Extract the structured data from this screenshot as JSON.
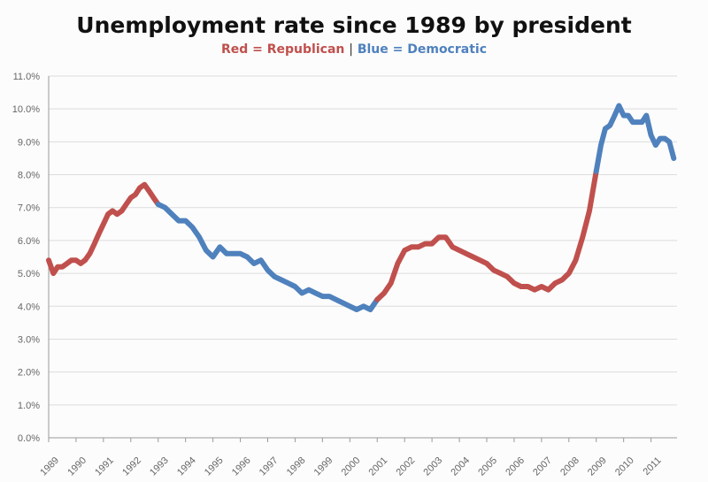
{
  "chart_data": {
    "type": "line",
    "title": "Unemployment rate since 1989 by president",
    "subtitle": {
      "republican": "Red = Republican",
      "separator": "|",
      "democratic": "Blue = Democratic"
    },
    "xlabel": "",
    "ylabel": "",
    "ylim": [
      0,
      11
    ],
    "y_ticks": [
      "0.0%",
      "1.0%",
      "2.0%",
      "3.0%",
      "4.0%",
      "5.0%",
      "6.0%",
      "7.0%",
      "8.0%",
      "9.0%",
      "10.0%",
      "11.0%"
    ],
    "x_ticks": [
      "1989",
      "1990",
      "1991",
      "1992",
      "1993",
      "1994",
      "1995",
      "1996",
      "1997",
      "1998",
      "1999",
      "2000",
      "2001",
      "2002",
      "2003",
      "2004",
      "2005",
      "2006",
      "2007",
      "2008",
      "2009",
      "2010",
      "2011"
    ],
    "grid": true,
    "colors": {
      "republican": "#c0504d",
      "democratic": "#4f81bd"
    },
    "series": [
      {
        "party": "republican",
        "x": [
          1989.0,
          1989.17,
          1989.33,
          1989.5,
          1989.67,
          1989.83,
          1990.0,
          1990.17,
          1990.33,
          1990.5,
          1990.67,
          1990.83,
          1991.0,
          1991.17,
          1991.33,
          1991.5,
          1991.67,
          1991.83,
          1992.0,
          1992.17,
          1992.33,
          1992.5,
          1992.67,
          1992.83,
          1993.0
        ],
        "values": [
          5.4,
          5.0,
          5.2,
          5.2,
          5.3,
          5.4,
          5.4,
          5.3,
          5.4,
          5.6,
          5.9,
          6.2,
          6.5,
          6.8,
          6.9,
          6.8,
          6.9,
          7.1,
          7.3,
          7.4,
          7.6,
          7.7,
          7.5,
          7.3,
          7.1
        ]
      },
      {
        "party": "democratic",
        "x": [
          1993.0,
          1993.25,
          1993.5,
          1993.75,
          1994.0,
          1994.25,
          1994.5,
          1994.75,
          1995.0,
          1995.25,
          1995.5,
          1995.75,
          1996.0,
          1996.25,
          1996.5,
          1996.75,
          1997.0,
          1997.25,
          1997.5,
          1997.75,
          1998.0,
          1998.25,
          1998.5,
          1998.75,
          1999.0,
          1999.25,
          1999.5,
          1999.75,
          2000.0,
          2000.25,
          2000.5,
          2000.75,
          2001.0
        ],
        "values": [
          7.1,
          7.0,
          6.8,
          6.6,
          6.6,
          6.4,
          6.1,
          5.7,
          5.5,
          5.8,
          5.6,
          5.6,
          5.6,
          5.5,
          5.3,
          5.4,
          5.1,
          4.9,
          4.8,
          4.7,
          4.6,
          4.4,
          4.5,
          4.4,
          4.3,
          4.3,
          4.2,
          4.1,
          4.0,
          3.9,
          4.0,
          3.9,
          4.2
        ]
      },
      {
        "party": "republican",
        "x": [
          2001.0,
          2001.25,
          2001.5,
          2001.75,
          2002.0,
          2002.25,
          2002.5,
          2002.75,
          2003.0,
          2003.25,
          2003.5,
          2003.75,
          2004.0,
          2004.25,
          2004.5,
          2004.75,
          2005.0,
          2005.25,
          2005.5,
          2005.75,
          2006.0,
          2006.25,
          2006.5,
          2006.75,
          2007.0,
          2007.25,
          2007.5,
          2007.75,
          2008.0,
          2008.25,
          2008.5,
          2008.75,
          2009.0
        ],
        "values": [
          4.2,
          4.4,
          4.7,
          5.3,
          5.7,
          5.8,
          5.8,
          5.9,
          5.9,
          6.1,
          6.1,
          5.8,
          5.7,
          5.6,
          5.5,
          5.4,
          5.3,
          5.1,
          5.0,
          4.9,
          4.7,
          4.6,
          4.6,
          4.5,
          4.6,
          4.5,
          4.7,
          4.8,
          5.0,
          5.4,
          6.1,
          6.9,
          8.1
        ]
      },
      {
        "party": "democratic",
        "x": [
          2009.0,
          2009.17,
          2009.33,
          2009.5,
          2009.67,
          2009.83,
          2010.0,
          2010.17,
          2010.33,
          2010.5,
          2010.67,
          2010.83,
          2011.0,
          2011.17,
          2011.33,
          2011.5,
          2011.67,
          2011.83
        ],
        "values": [
          8.1,
          8.9,
          9.4,
          9.5,
          9.8,
          10.1,
          9.8,
          9.8,
          9.6,
          9.6,
          9.6,
          9.8,
          9.2,
          8.9,
          9.1,
          9.1,
          9.0,
          8.5
        ]
      }
    ]
  }
}
